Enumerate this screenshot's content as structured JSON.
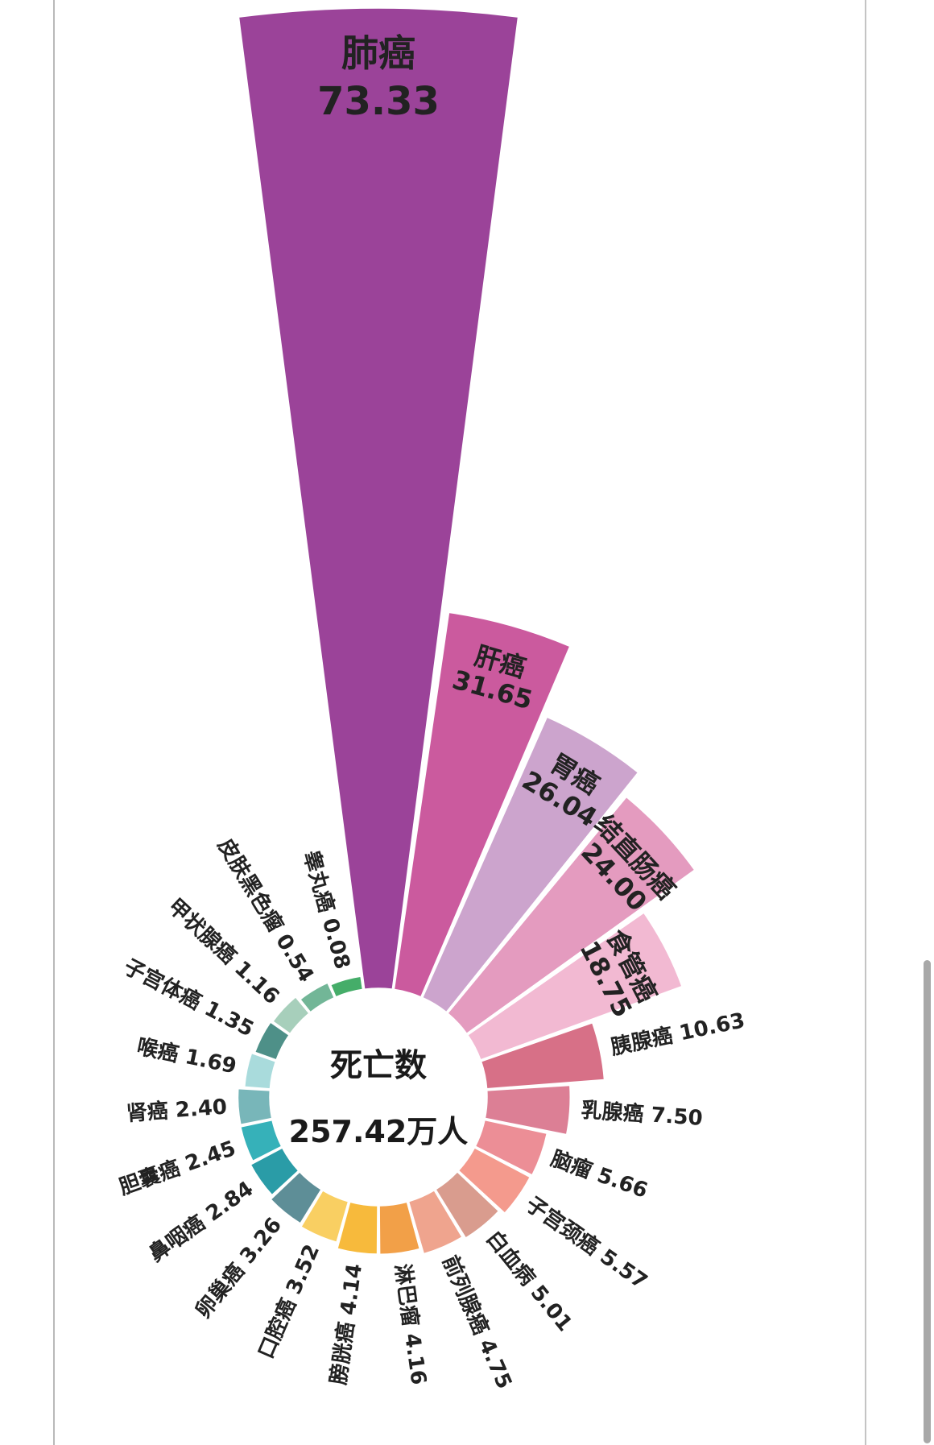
{
  "chart_data": {
    "type": "polar_bar",
    "center_title": "死亡数",
    "total_label": "257.42万人",
    "series": [
      {
        "name": "肺癌",
        "value": 73.33,
        "value_label": "73.33",
        "color": "#9b4399"
      },
      {
        "name": "肝癌",
        "value": 31.65,
        "value_label": "31.65",
        "color": "#cb5a9e"
      },
      {
        "name": "胃癌",
        "value": 26.04,
        "value_label": "26.04",
        "color": "#cca4cd"
      },
      {
        "name": "结直肠癌",
        "value": 24.0,
        "value_label": "24.00",
        "color": "#e49bbf"
      },
      {
        "name": "食管癌",
        "value": 18.75,
        "value_label": "18.75",
        "color": "#f2b9d2"
      },
      {
        "name": "胰腺癌",
        "value": 10.63,
        "value_label": "10.63",
        "color": "#d77087"
      },
      {
        "name": "乳腺癌",
        "value": 7.5,
        "value_label": "7.50",
        "color": "#dc7f95"
      },
      {
        "name": "脑瘤",
        "value": 5.66,
        "value_label": "5.66",
        "color": "#ec8e96"
      },
      {
        "name": "子宫颈癌",
        "value": 5.57,
        "value_label": "5.57",
        "color": "#f49a8d"
      },
      {
        "name": "白血病",
        "value": 5.01,
        "value_label": "5.01",
        "color": "#d99c8e"
      },
      {
        "name": "前列腺癌",
        "value": 4.75,
        "value_label": "4.75",
        "color": "#efa48e"
      },
      {
        "name": "淋巴瘤",
        "value": 4.16,
        "value_label": "4.16",
        "color": "#f2a048"
      },
      {
        "name": "膀胱癌",
        "value": 4.14,
        "value_label": "4.14",
        "color": "#f7ba3c"
      },
      {
        "name": "口腔癌",
        "value": 3.52,
        "value_label": "3.52",
        "color": "#f9cf62"
      },
      {
        "name": "卵巢癌",
        "value": 3.26,
        "value_label": "3.26",
        "color": "#5e8e97"
      },
      {
        "name": "鼻咽癌",
        "value": 2.84,
        "value_label": "2.84",
        "color": "#2a9ca7"
      },
      {
        "name": "胆囊癌",
        "value": 2.45,
        "value_label": "2.45",
        "color": "#36b1b9"
      },
      {
        "name": "肾癌",
        "value": 2.4,
        "value_label": "2.40",
        "color": "#78b6b9"
      },
      {
        "name": "喉癌",
        "value": 1.69,
        "value_label": "1.69",
        "color": "#a9dbdc"
      },
      {
        "name": "子宫体癌",
        "value": 1.35,
        "value_label": "1.35",
        "color": "#4e9088"
      },
      {
        "name": "甲状腺癌",
        "value": 1.16,
        "value_label": "1.16",
        "color": "#a7cfbb"
      },
      {
        "name": "皮肤黑色瘤",
        "value": 0.54,
        "value_label": "0.54",
        "color": "#72b697"
      },
      {
        "name": "睾丸癌",
        "value": 0.08,
        "value_label": "0.08",
        "color": "#45ad69"
      }
    ]
  }
}
